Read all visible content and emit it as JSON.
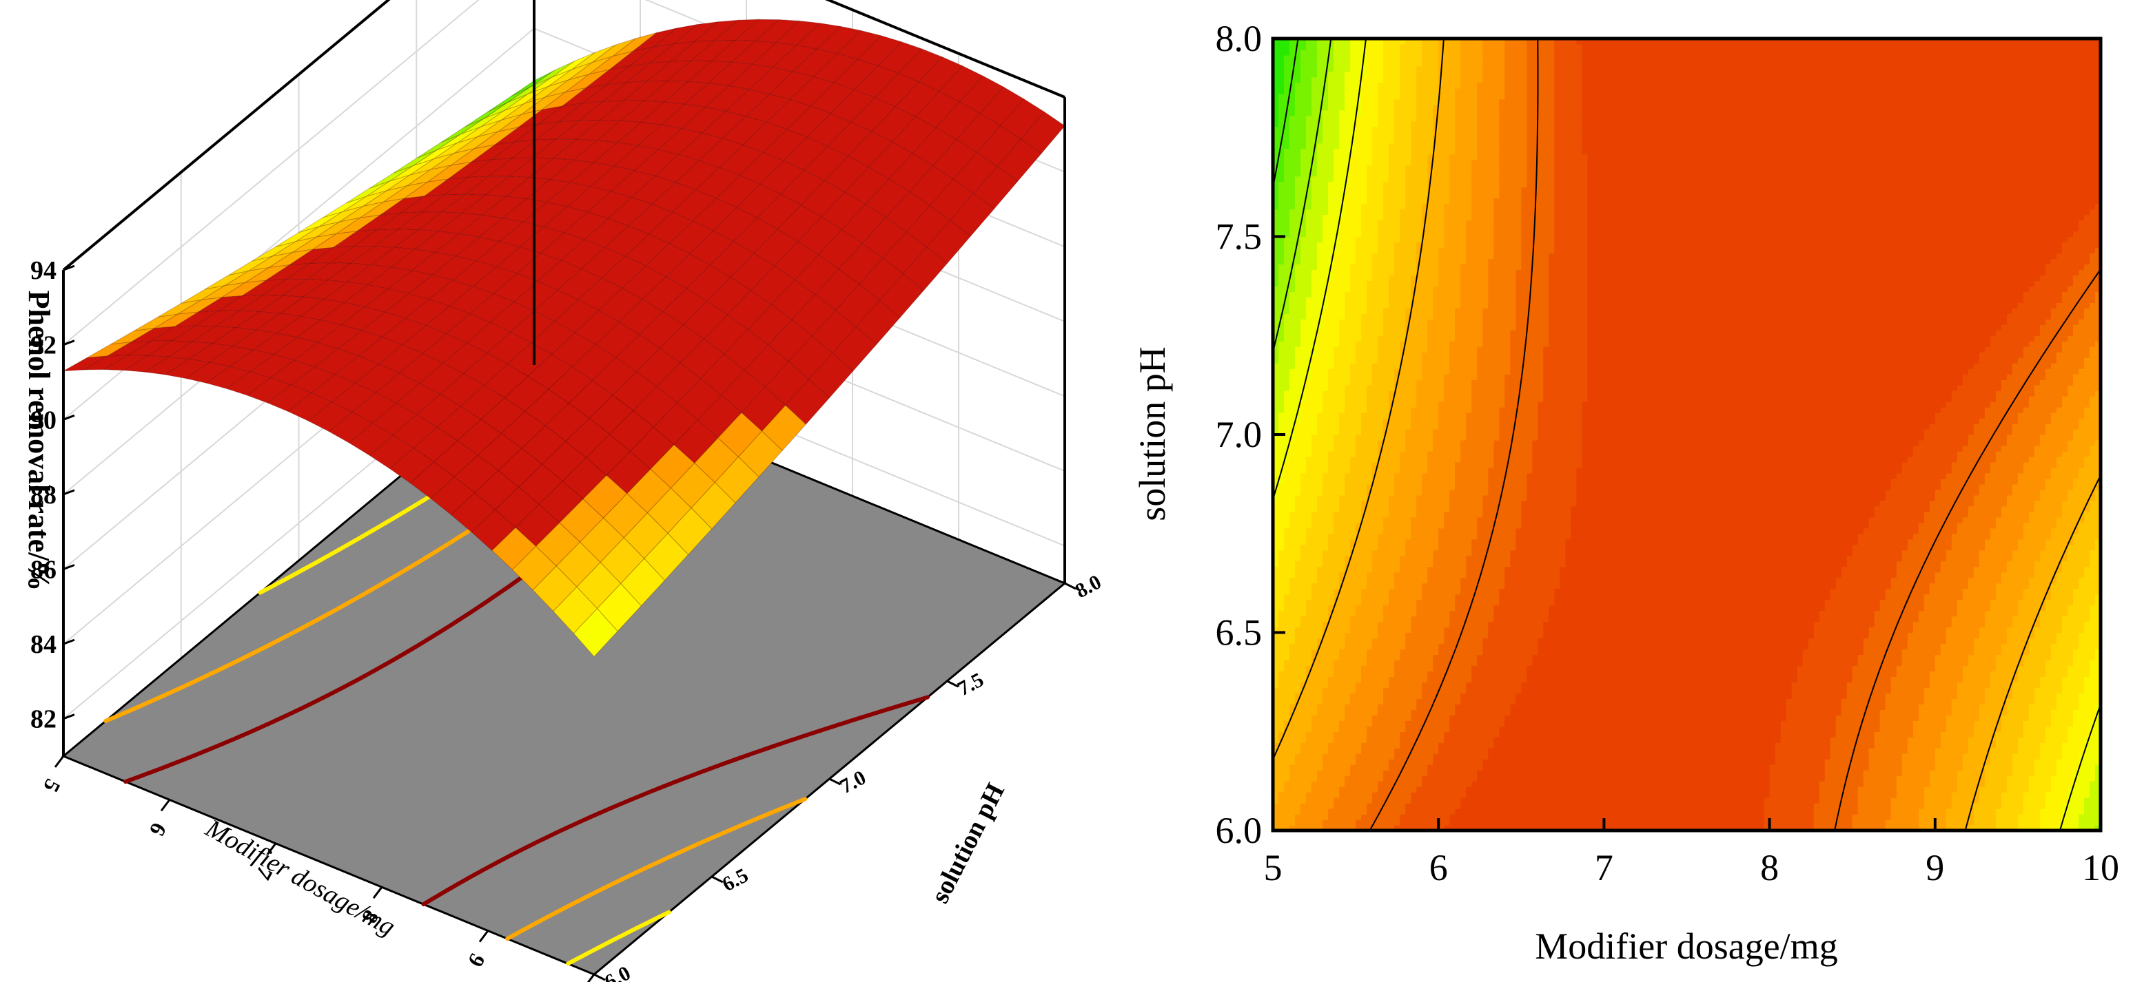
{
  "chart_data": [
    {
      "type": "surface",
      "title": "",
      "xlabel": "Modifier dosage/mg",
      "ylabel": "solution pH",
      "zlabel": "Phenol removal rate/%",
      "x_ticks": [
        "5",
        "6",
        "7",
        "8",
        "9",
        "10"
      ],
      "y_ticks": [
        "6.0",
        "6.5",
        "7.0",
        "7.5",
        "8.0"
      ],
      "z_ticks": [
        "82",
        "84",
        "86",
        "88",
        "90",
        "92",
        "94"
      ],
      "xlim": [
        5,
        10
      ],
      "ylim": [
        6.0,
        8.0
      ],
      "zlim": [
        81,
        94
      ],
      "grid": true,
      "floor_projection": "contour",
      "colormap": [
        "#1f4fd6",
        "#14d6f0",
        "#00e600",
        "#ffff00",
        "#ff9900",
        "#dd1100"
      ],
      "model": {
        "form": "quadratic",
        "peak_x": 7.4,
        "peak_y": 6.45,
        "peak_z": 92.6,
        "corner_values": [
          {
            "x": 5,
            "y": 6.0,
            "z": 91.3
          },
          {
            "x": 10,
            "y": 6.0,
            "z": 89.5
          },
          {
            "x": 5,
            "y": 8.0,
            "z": 88.6
          },
          {
            "x": 10,
            "y": 8.0,
            "z": 85.6
          }
        ]
      }
    },
    {
      "type": "contour",
      "title": "",
      "xlabel": "Modifier dosage/mg",
      "ylabel": "solution pH",
      "x_ticks": [
        "5",
        "6",
        "7",
        "8",
        "9",
        "10"
      ],
      "y_ticks": [
        "6.0",
        "6.5",
        "7.0",
        "7.5",
        "8.0"
      ],
      "xlim": [
        5,
        10
      ],
      "ylim": [
        6.0,
        8.0
      ],
      "fill_levels": 30,
      "contour_lines": [
        92,
        91,
        90,
        89.5,
        89,
        88.5,
        88,
        87,
        86
      ],
      "colormap": [
        "#1f4fd6",
        "#14d6f0",
        "#00e600",
        "#ffff00",
        "#ff9900",
        "#dd1100"
      ]
    }
  ]
}
